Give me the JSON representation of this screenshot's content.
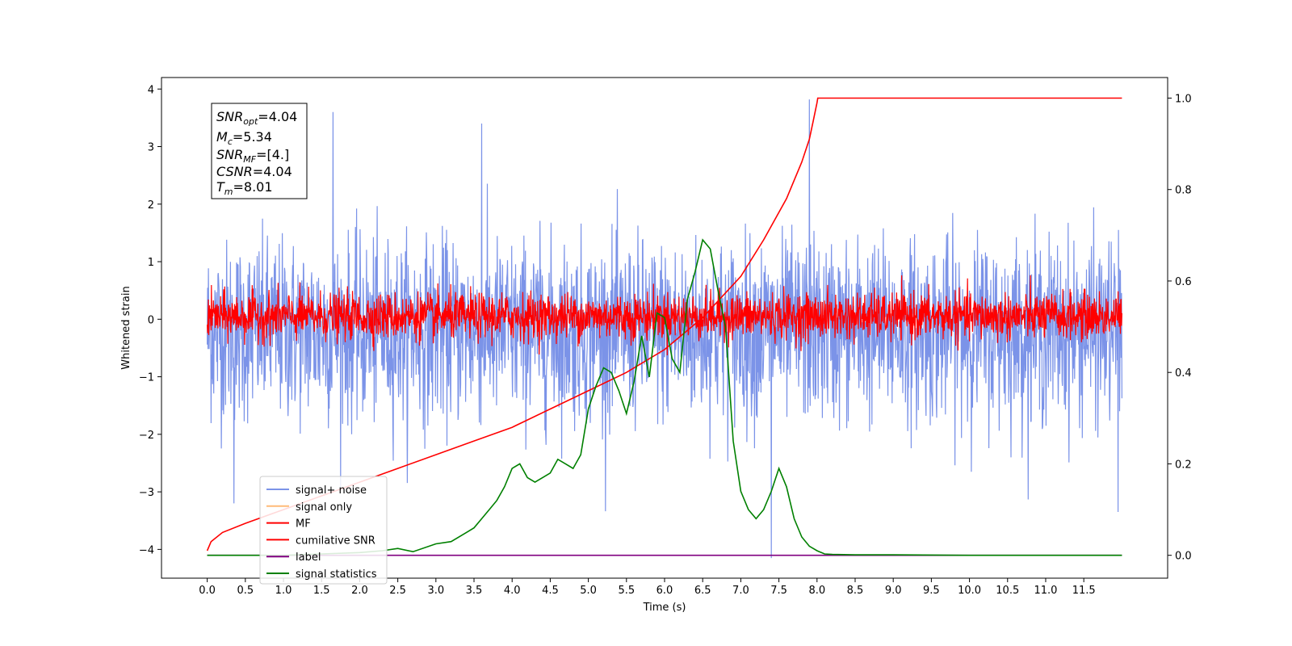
{
  "chart_data": {
    "type": "line",
    "xlabel": "Time (s)",
    "ylabel_left": "Whitened strain",
    "ylabel_right": "",
    "xlim": [
      -0.6,
      12.6
    ],
    "ylim_left": [
      -4.5,
      4.2
    ],
    "ylim_right": [
      -0.05,
      1.045
    ],
    "x_ticks": [
      "0.0",
      "0.5",
      "1.0",
      "1.5",
      "2.0",
      "2.5",
      "3.0",
      "3.5",
      "4.0",
      "4.5",
      "5.0",
      "5.5",
      "6.0",
      "6.5",
      "7.0",
      "7.5",
      "8.0",
      "8.5",
      "9.0",
      "9.5",
      "10.0",
      "10.5",
      "11.0",
      "11.5"
    ],
    "y_ticks_left": [
      "4",
      "3",
      "2",
      "1",
      "0",
      "−1",
      "−2",
      "−3",
      "−4"
    ],
    "y_ticks_right": [
      "1.0",
      "0.8",
      "0.6",
      "0.4",
      "0.2",
      "0.0"
    ],
    "grid": false,
    "legend_position": "lower-left",
    "annotation": {
      "snr_opt": {
        "sym": "SNR",
        "sub": "opt",
        "val": "=4.04"
      },
      "mc": {
        "sym": "M",
        "sub": "c",
        "val": "=5.34"
      },
      "snr_mf": {
        "sym": "SNR",
        "sub": "MF",
        "val": "=[4.]"
      },
      "csnr": {
        "sym": "CSNR",
        "sub": "",
        "val": "=4.04"
      },
      "tm": {
        "sym": "T",
        "sub": "m",
        "val": "=8.01"
      }
    },
    "series": [
      {
        "name": "signal+ noise",
        "color": "#7b93e8",
        "axis": "left",
        "style": "noise",
        "x_range": [
          0,
          12.0
        ],
        "mean": -0.2,
        "band": [
          -1.9,
          2.0
        ],
        "extremes": [
          {
            "x": 1.65,
            "y": 3.6
          },
          {
            "x": 3.6,
            "y": 3.4
          },
          {
            "x": 7.9,
            "y": 3.82
          },
          {
            "x": 7.4,
            "y": -4.15
          },
          {
            "x": 0.35,
            "y": -3.2
          },
          {
            "x": 11.95,
            "y": -3.35
          }
        ]
      },
      {
        "name": "signal only",
        "color": "#ffbb78",
        "axis": "left",
        "style": "none"
      },
      {
        "name": "MF",
        "color": "#ff0000",
        "axis": "left",
        "style": "noise",
        "x_range": [
          0,
          12.0
        ],
        "mean": 0.05,
        "band": [
          -0.4,
          0.6
        ]
      },
      {
        "name": "cumilative SNR",
        "color": "#ff0000",
        "axis": "right",
        "style": "curve",
        "x": [
          0,
          0.05,
          0.2,
          0.5,
          1.0,
          1.5,
          2.0,
          2.5,
          3.0,
          3.5,
          4.0,
          4.5,
          5.0,
          5.5,
          6.0,
          6.5,
          7.0,
          7.3,
          7.6,
          7.8,
          7.9,
          7.95,
          8.0,
          8.01,
          12.0
        ],
        "y": [
          0.01,
          0.03,
          0.05,
          0.07,
          0.1,
          0.13,
          0.16,
          0.19,
          0.22,
          0.25,
          0.28,
          0.32,
          0.36,
          0.4,
          0.45,
          0.52,
          0.61,
          0.69,
          0.78,
          0.86,
          0.91,
          0.95,
          0.99,
          1.0,
          1.0
        ]
      },
      {
        "name": "label",
        "color": "#800080",
        "axis": "right",
        "x": [
          0,
          12.0
        ],
        "y": [
          0.0,
          0.0
        ]
      },
      {
        "name": "signal statistics",
        "color": "#008000",
        "axis": "right",
        "style": "curve",
        "x": [
          0,
          0.5,
          1.0,
          1.5,
          2.0,
          2.3,
          2.5,
          2.7,
          3.0,
          3.2,
          3.4,
          3.5,
          3.6,
          3.7,
          3.8,
          3.9,
          4.0,
          4.1,
          4.2,
          4.3,
          4.4,
          4.5,
          4.6,
          4.7,
          4.8,
          4.9,
          5.0,
          5.1,
          5.2,
          5.3,
          5.4,
          5.5,
          5.6,
          5.7,
          5.8,
          5.9,
          6.0,
          6.1,
          6.2,
          6.3,
          6.4,
          6.5,
          6.6,
          6.7,
          6.8,
          6.9,
          7.0,
          7.1,
          7.2,
          7.3,
          7.4,
          7.5,
          7.6,
          7.7,
          7.8,
          7.9,
          8.0,
          8.1,
          8.2,
          8.5,
          9.0,
          10.0,
          11.0,
          12.0
        ],
        "y": [
          0.0,
          0.0,
          0.0,
          0.003,
          0.006,
          0.01,
          0.015,
          0.008,
          0.025,
          0.03,
          0.05,
          0.06,
          0.08,
          0.1,
          0.12,
          0.15,
          0.19,
          0.2,
          0.17,
          0.16,
          0.17,
          0.18,
          0.21,
          0.2,
          0.19,
          0.22,
          0.32,
          0.37,
          0.41,
          0.4,
          0.36,
          0.31,
          0.38,
          0.48,
          0.39,
          0.53,
          0.52,
          0.43,
          0.4,
          0.56,
          0.62,
          0.69,
          0.67,
          0.58,
          0.5,
          0.25,
          0.14,
          0.1,
          0.08,
          0.1,
          0.14,
          0.19,
          0.15,
          0.08,
          0.04,
          0.02,
          0.01,
          0.003,
          0.002,
          0.001,
          0.001,
          0.0,
          0.0,
          0.0
        ]
      }
    ]
  }
}
